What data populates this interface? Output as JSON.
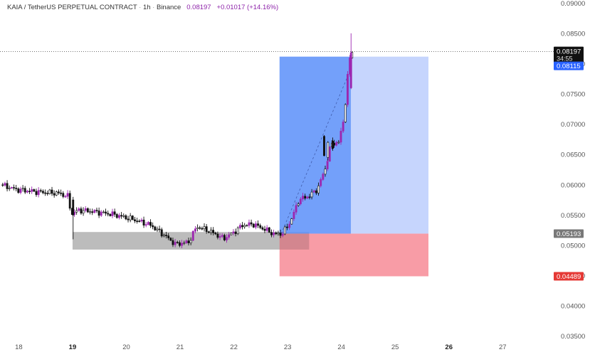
{
  "header": {
    "pair": "KAIA / TetherUS PERPETUAL CONTRACT",
    "interval": "1h",
    "exchange": "Binance",
    "price": "0.08197",
    "change": "+0.01017 (+14.16%)"
  },
  "colors": {
    "candle": "#111111",
    "candle_up_accent": "#9c27b0",
    "profit_zone": "#5b8ff9",
    "profit_zone_light": "#c3d3fd",
    "loss_zone": "#f7919c",
    "demand_zone": "#b8b8b8",
    "last_price_bg": "#111111",
    "entry_label_bg": "#2962ff",
    "stop_label_bg": "#e53935"
  },
  "chart_data": {
    "type": "candlestick",
    "x_ticks": [
      {
        "label": "18",
        "x": 18.0
      },
      {
        "label": "19",
        "x": 19.0,
        "bold": true
      },
      {
        "label": "20",
        "x": 20.0
      },
      {
        "label": "21",
        "x": 21.0
      },
      {
        "label": "22",
        "x": 22.0
      },
      {
        "label": "23",
        "x": 23.0
      },
      {
        "label": "24",
        "x": 24.0
      },
      {
        "label": "25",
        "x": 25.0
      },
      {
        "label": "26",
        "x": 26.0,
        "bold": true
      },
      {
        "label": "27",
        "x": 27.0
      }
    ],
    "xlim": [
      17.65,
      27.95
    ],
    "ylim": [
      0.0345,
      0.0905
    ],
    "y_ticks": [
      "0.09000",
      "0.08500",
      "0.08000",
      "0.07500",
      "0.07000",
      "0.06500",
      "0.06000",
      "0.05500",
      "0.05000",
      "0.04500",
      "0.04000",
      "0.03500"
    ],
    "y_tick_values": [
      0.09,
      0.085,
      0.08,
      0.075,
      0.07,
      0.065,
      0.06,
      0.055,
      0.05,
      0.045,
      0.04,
      0.035
    ],
    "price_labels": {
      "last": {
        "value": 0.08197,
        "text": "0.08197",
        "countdown": "34:55"
      },
      "entry": {
        "value": 0.08115,
        "text": "0.08115"
      },
      "support": {
        "value": 0.05193,
        "text": "0.05193"
      },
      "stop": {
        "value": 0.04489,
        "text": "0.04489"
      }
    },
    "path": [
      [
        17.7,
        0.06
      ],
      [
        18.0,
        0.0592
      ],
      [
        18.4,
        0.0588
      ],
      [
        18.78,
        0.0586
      ],
      [
        18.98,
        0.058
      ],
      [
        19.0,
        0.0551
      ],
      [
        19.15,
        0.0558
      ],
      [
        19.4,
        0.0556
      ],
      [
        19.8,
        0.0551
      ],
      [
        20.2,
        0.0542
      ],
      [
        20.5,
        0.0533
      ],
      [
        20.8,
        0.0513
      ],
      [
        20.95,
        0.0502
      ],
      [
        21.2,
        0.0505
      ],
      [
        21.35,
        0.0531
      ],
      [
        21.6,
        0.0523
      ],
      [
        21.85,
        0.0511
      ],
      [
        22.05,
        0.0522
      ],
      [
        22.2,
        0.0533
      ],
      [
        22.4,
        0.0535
      ],
      [
        22.6,
        0.0527
      ],
      [
        22.8,
        0.0518
      ],
      [
        22.95,
        0.052
      ],
      [
        23.1,
        0.054
      ],
      [
        23.25,
        0.0575
      ],
      [
        23.45,
        0.0582
      ],
      [
        23.6,
        0.0593
      ],
      [
        23.75,
        0.0629
      ],
      [
        23.85,
        0.0668
      ],
      [
        24.0,
        0.067
      ],
      [
        24.1,
        0.0718
      ],
      [
        24.18,
        0.08
      ],
      [
        24.22,
        0.082
      ]
    ],
    "volatile_candles": [
      {
        "x": 19.01,
        "o": 0.0575,
        "h": 0.058,
        "l": 0.051,
        "c": 0.055
      },
      {
        "x": 23.68,
        "o": 0.068,
        "h": 0.0682,
        "l": 0.0647,
        "c": 0.0648
      },
      {
        "x": 23.75,
        "o": 0.0645,
        "h": 0.0672,
        "l": 0.064,
        "c": 0.067
      },
      {
        "x": 23.84,
        "o": 0.0672,
        "h": 0.0678,
        "l": 0.0656,
        "c": 0.066
      },
      {
        "x": 24.18,
        "o": 0.076,
        "h": 0.085,
        "l": 0.0758,
        "c": 0.0818
      }
    ],
    "zones": {
      "demand": {
        "x0": 19.0,
        "x1": 23.4,
        "y0": 0.0522,
        "y1": 0.0493
      },
      "long_profit": {
        "x0": 22.85,
        "x1": 25.62,
        "y0": 0.08115,
        "y1": 0.05193,
        "split_x": 24.18
      },
      "long_stop": {
        "x0": 22.85,
        "x1": 25.62,
        "y0": 0.05193,
        "y1": 0.04489
      }
    },
    "trend_line": {
      "x0": 22.88,
      "y0": 0.0519,
      "x1": 24.18,
      "y1": 0.0792
    },
    "current_price_line": 0.08197
  }
}
